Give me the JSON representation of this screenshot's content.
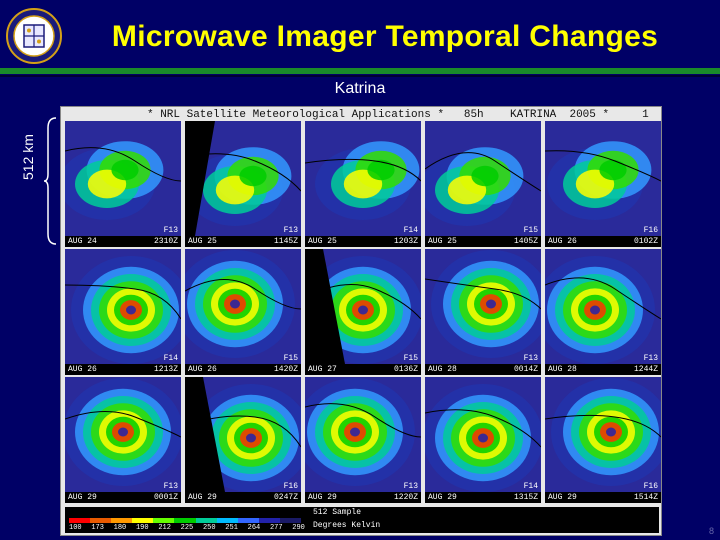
{
  "header": {
    "title": "Microwave Imager Temporal Changes",
    "subtitle": "Katrina"
  },
  "scale": {
    "label": "512 km"
  },
  "image": {
    "header_text": "* NRL Satellite Meteorological Applications *   85h    KATRINA  2005 *     1",
    "tiles": [
      {
        "date": "AUG 24",
        "time": "2310Z",
        "sat": "F13"
      },
      {
        "date": "AUG 25",
        "time": "1145Z",
        "sat": "F13"
      },
      {
        "date": "AUG 25",
        "time": "1203Z",
        "sat": "F14"
      },
      {
        "date": "AUG 25",
        "time": "1405Z",
        "sat": "F15"
      },
      {
        "date": "AUG 26",
        "time": "0102Z",
        "sat": "F16"
      },
      {
        "date": "AUG 26",
        "time": "1213Z",
        "sat": "F14"
      },
      {
        "date": "AUG 26",
        "time": "1420Z",
        "sat": "F15"
      },
      {
        "date": "AUG 27",
        "time": "0136Z",
        "sat": "F15"
      },
      {
        "date": "AUG 28",
        "time": "0014Z",
        "sat": "F13"
      },
      {
        "date": "AUG 28",
        "time": "1244Z",
        "sat": "F13"
      },
      {
        "date": "AUG 29",
        "time": "0001Z",
        "sat": "F13"
      },
      {
        "date": "AUG 29",
        "time": "0247Z",
        "sat": "F16"
      },
      {
        "date": "AUG 29",
        "time": "1220Z",
        "sat": "F13"
      },
      {
        "date": "AUG 29",
        "time": "1315Z",
        "sat": "F14"
      },
      {
        "date": "AUG 29",
        "time": "1514Z",
        "sat": "F16"
      }
    ],
    "legend": {
      "sample": "512 Sample",
      "units": "Degrees Kelvin",
      "ticks": [
        "100",
        "173",
        "180",
        "190",
        "212",
        "225",
        "250",
        "251",
        "264",
        "277",
        "290"
      ],
      "colors": [
        "#ff0000",
        "#e85a00",
        "#ff9900",
        "#ffff00",
        "#66ff00",
        "#00cc00",
        "#00cc99",
        "#00bbff",
        "#3366ff",
        "#2222aa",
        "#1a1a66"
      ]
    }
  },
  "page_number": "8"
}
